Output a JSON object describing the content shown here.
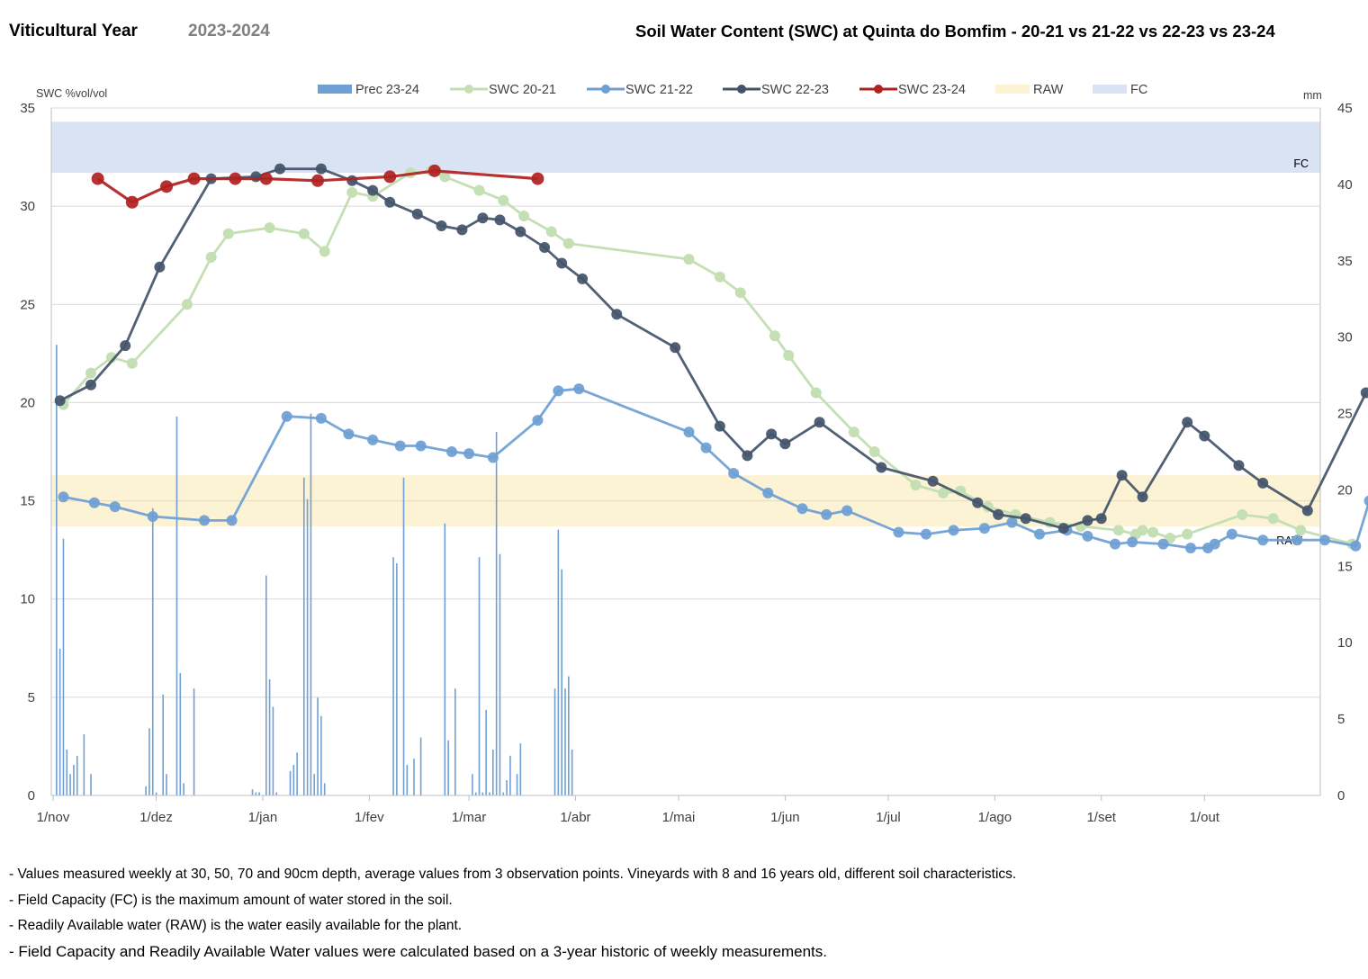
{
  "header": {
    "label": "Viticultural Year",
    "year": "2023-2024",
    "title": "Soil Water Content (SWC) at Quinta do Bomfim - 20-21 vs 21-22 vs 22-23 vs 23-24"
  },
  "chart_data": {
    "type": "line",
    "title": "Soil Water Content (SWC) at Quinta do Bomfim - 20-21 vs 21-22 vs 22-23 vs 23-24",
    "ylabel": "SWC %vol/vol",
    "y2label": "mm",
    "ylim": [
      0,
      35
    ],
    "y2lim": [
      0,
      45
    ],
    "yticks": [
      "0",
      "5",
      "10",
      "15",
      "20",
      "25",
      "30",
      "35"
    ],
    "y2ticks": [
      "0",
      "5",
      "10",
      "15",
      "20",
      "25",
      "30",
      "35",
      "40",
      "45"
    ],
    "xlim_days": [
      0,
      360
    ],
    "x_ticks": [
      {
        "label": "1/nov",
        "day": 0
      },
      {
        "label": "1/dez",
        "day": 30
      },
      {
        "label": "1/jan",
        "day": 61
      },
      {
        "label": "1/fev",
        "day": 92
      },
      {
        "label": "1/mar",
        "day": 121
      },
      {
        "label": "1/abr",
        "day": 152
      },
      {
        "label": "1/mai",
        "day": 182
      },
      {
        "label": "1/jun",
        "day": 213
      },
      {
        "label": "1/jul",
        "day": 243
      },
      {
        "label": "1/ago",
        "day": 274
      },
      {
        "label": "1/set",
        "day": 305
      },
      {
        "label": "1/out",
        "day": 335
      }
    ],
    "legend": [
      "Prec 23-24",
      "SWC 20-21",
      "SWC 21-22",
      "SWC 22-23",
      "SWC 23-24",
      "RAW",
      "FC"
    ],
    "legend_position": "top",
    "grid": "horizontal",
    "bands": [
      {
        "name": "FC",
        "from": 31.7,
        "to": 34.3,
        "color": "#dae3f3",
        "label": "FC"
      },
      {
        "name": "RAW",
        "from": 13.7,
        "to": 16.3,
        "color": "#fcf2d4",
        "label": "RAW"
      }
    ],
    "bars": {
      "name": "Prec 23-24",
      "color": "#6f9fd4",
      "axis": "right",
      "points": [
        [
          1,
          29.5
        ],
        [
          2,
          9.6
        ],
        [
          3,
          16.8
        ],
        [
          4,
          3.0
        ],
        [
          5,
          1.4
        ],
        [
          6,
          2.0
        ],
        [
          7,
          2.6
        ],
        [
          9,
          4.0
        ],
        [
          11,
          1.4
        ],
        [
          27,
          0.6
        ],
        [
          28,
          4.4
        ],
        [
          29,
          18.8
        ],
        [
          30,
          0.2
        ],
        [
          32,
          6.6
        ],
        [
          33,
          1.4
        ],
        [
          36,
          24.8
        ],
        [
          37,
          8.0
        ],
        [
          38,
          0.8
        ],
        [
          41,
          7.0
        ],
        [
          58,
          0.4
        ],
        [
          59,
          0.2
        ],
        [
          60,
          0.2
        ],
        [
          62,
          14.4
        ],
        [
          63,
          7.6
        ],
        [
          64,
          5.8
        ],
        [
          65,
          0.2
        ],
        [
          69,
          1.6
        ],
        [
          70,
          2.0
        ],
        [
          71,
          2.8
        ],
        [
          73,
          20.8
        ],
        [
          74,
          19.4
        ],
        [
          75,
          25.0
        ],
        [
          76,
          1.4
        ],
        [
          77,
          6.4
        ],
        [
          78,
          5.2
        ],
        [
          79,
          0.8
        ],
        [
          99,
          15.6
        ],
        [
          100,
          15.2
        ],
        [
          102,
          20.8
        ],
        [
          103,
          2.0
        ],
        [
          105,
          2.4
        ],
        [
          107,
          3.8
        ],
        [
          114,
          17.8
        ],
        [
          115,
          3.6
        ],
        [
          117,
          7.0
        ],
        [
          122,
          1.4
        ],
        [
          123,
          0.2
        ],
        [
          124,
          15.6
        ],
        [
          125,
          0.2
        ],
        [
          126,
          5.6
        ],
        [
          127,
          0.2
        ],
        [
          128,
          3.0
        ],
        [
          129,
          23.8
        ],
        [
          130,
          15.8
        ],
        [
          131,
          0.2
        ],
        [
          132,
          1.0
        ],
        [
          133,
          2.6
        ],
        [
          135,
          1.4
        ],
        [
          136,
          3.4
        ],
        [
          146,
          7.0
        ],
        [
          147,
          17.4
        ],
        [
          148,
          14.8
        ],
        [
          149,
          7.0
        ],
        [
          150,
          7.8
        ],
        [
          151,
          3.0
        ]
      ]
    },
    "series": [
      {
        "name": "SWC 20-21",
        "color": "#c5dfb4",
        "points": [
          [
            3,
            19.9
          ],
          [
            11,
            21.5
          ],
          [
            17,
            22.3
          ],
          [
            23,
            22.0
          ],
          [
            39,
            25.0
          ],
          [
            46,
            27.4
          ],
          [
            51,
            28.6
          ],
          [
            63,
            28.9
          ],
          [
            73,
            28.6
          ],
          [
            79,
            27.7
          ],
          [
            87,
            30.7
          ],
          [
            93,
            30.5
          ],
          [
            104,
            31.7
          ],
          [
            110,
            31.8
          ],
          [
            114,
            31.5
          ],
          [
            124,
            30.8
          ],
          [
            131,
            30.3
          ],
          [
            137,
            29.5
          ],
          [
            145,
            28.7
          ],
          [
            150,
            28.1
          ],
          [
            185,
            27.3
          ],
          [
            194,
            26.4
          ],
          [
            200,
            25.6
          ],
          [
            210,
            23.4
          ],
          [
            214,
            22.4
          ],
          [
            222,
            20.5
          ],
          [
            233,
            18.5
          ],
          [
            239,
            17.5
          ],
          [
            251,
            15.8
          ],
          [
            259,
            15.4
          ],
          [
            264,
            15.5
          ],
          [
            272,
            14.7
          ],
          [
            280,
            14.3
          ],
          [
            290,
            13.9
          ],
          [
            299,
            13.7
          ],
          [
            310,
            13.5
          ],
          [
            315,
            13.3
          ],
          [
            317,
            13.5
          ],
          [
            320,
            13.4
          ],
          [
            325,
            13.1
          ],
          [
            330,
            13.3
          ],
          [
            346,
            14.3
          ],
          [
            355,
            14.1
          ],
          [
            363,
            13.5
          ],
          [
            378,
            12.8
          ]
        ]
      },
      {
        "name": "SWC 21-22",
        "color": "#6e9fd4",
        "points": [
          [
            3,
            15.2
          ],
          [
            12,
            14.9
          ],
          [
            18,
            14.7
          ],
          [
            29,
            14.2
          ],
          [
            44,
            14.0
          ],
          [
            52,
            14.0
          ],
          [
            68,
            19.3
          ],
          [
            78,
            19.2
          ],
          [
            86,
            18.4
          ],
          [
            93,
            18.1
          ],
          [
            101,
            17.8
          ],
          [
            107,
            17.8
          ],
          [
            116,
            17.5
          ],
          [
            121,
            17.4
          ],
          [
            128,
            17.2
          ],
          [
            141,
            19.1
          ],
          [
            147,
            20.6
          ],
          [
            153,
            20.7
          ],
          [
            185,
            18.5
          ],
          [
            190,
            17.7
          ],
          [
            198,
            16.4
          ],
          [
            208,
            15.4
          ],
          [
            218,
            14.6
          ],
          [
            225,
            14.3
          ],
          [
            231,
            14.5
          ],
          [
            246,
            13.4
          ],
          [
            254,
            13.3
          ],
          [
            262,
            13.5
          ],
          [
            271,
            13.6
          ],
          [
            279,
            13.9
          ],
          [
            287,
            13.3
          ],
          [
            295,
            13.5
          ],
          [
            301,
            13.2
          ],
          [
            309,
            12.8
          ],
          [
            314,
            12.9
          ],
          [
            323,
            12.8
          ],
          [
            331,
            12.6
          ],
          [
            336,
            12.6
          ],
          [
            338,
            12.8
          ],
          [
            343,
            13.3
          ],
          [
            352,
            13.0
          ],
          [
            362,
            13.0
          ],
          [
            370,
            13.0
          ],
          [
            379,
            12.7
          ],
          [
            383,
            15.0
          ]
        ]
      },
      {
        "name": "SWC 22-23",
        "color": "#44546a",
        "points": [
          [
            2,
            20.1
          ],
          [
            11,
            20.9
          ],
          [
            21,
            22.9
          ],
          [
            31,
            26.9
          ],
          [
            46,
            31.4
          ],
          [
            59,
            31.5
          ],
          [
            66,
            31.9
          ],
          [
            78,
            31.9
          ],
          [
            87,
            31.3
          ],
          [
            93,
            30.8
          ],
          [
            98,
            30.2
          ],
          [
            106,
            29.6
          ],
          [
            113,
            29.0
          ],
          [
            119,
            28.8
          ],
          [
            125,
            29.4
          ],
          [
            130,
            29.3
          ],
          [
            136,
            28.7
          ],
          [
            143,
            27.9
          ],
          [
            148,
            27.1
          ],
          [
            154,
            26.3
          ],
          [
            164,
            24.5
          ],
          [
            181,
            22.8
          ],
          [
            194,
            18.8
          ],
          [
            202,
            17.3
          ],
          [
            209,
            18.4
          ],
          [
            213,
            17.9
          ],
          [
            223,
            19.0
          ],
          [
            241,
            16.7
          ],
          [
            256,
            16.0
          ],
          [
            269,
            14.9
          ],
          [
            275,
            14.3
          ],
          [
            283,
            14.1
          ],
          [
            294,
            13.6
          ],
          [
            301,
            14.0
          ],
          [
            305,
            14.1
          ],
          [
            311,
            16.3
          ],
          [
            317,
            15.2
          ],
          [
            330,
            19.0
          ],
          [
            335,
            18.3
          ],
          [
            345,
            16.8
          ],
          [
            352,
            15.9
          ],
          [
            365,
            14.5
          ],
          [
            382,
            20.5
          ]
        ]
      },
      {
        "name": "SWC 23-24",
        "color": "#b02222",
        "points": [
          [
            13,
            31.4
          ],
          [
            23,
            30.2
          ],
          [
            33,
            31.0
          ],
          [
            41,
            31.4
          ],
          [
            53,
            31.4
          ],
          [
            62,
            31.4
          ],
          [
            77,
            31.3
          ],
          [
            98,
            31.5
          ],
          [
            111,
            31.8
          ],
          [
            141,
            31.4
          ]
        ]
      }
    ],
    "notes": [
      "- Values measured weekly at 30, 50, 70 and 90cm depth, average values from 3 observation points. Vineyards with 8 and 16 years old, different soil characteristics.",
      "- Field Capacity (FC) is the maximum amount of water stored in the soil.",
      "- Readily Available water (RAW) is the water easily available for the plant.",
      "- Field Capacity and Readily Available Water values were calculated based on a 3-year historic of weekly measurements."
    ]
  }
}
